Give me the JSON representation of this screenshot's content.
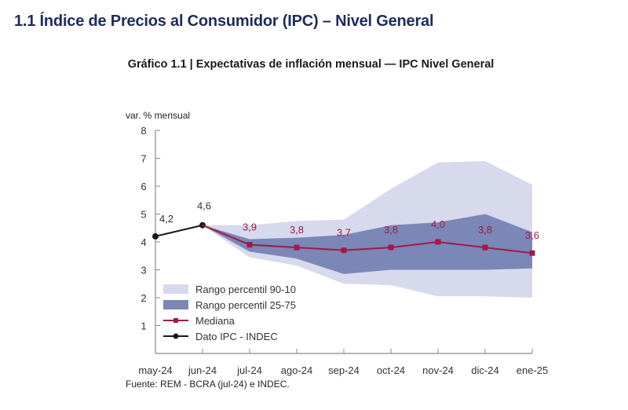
{
  "section": {
    "title": "1.1 Índice de Precios al Consumidor (IPC) – Nivel General"
  },
  "chart_data": {
    "type": "line",
    "title": "Gráfico 1.1 | Expectativas de inflación mensual — IPC Nivel General",
    "ylabel": "var. % mensual",
    "xlabel": "",
    "ylim": [
      0,
      8
    ],
    "yticks": [
      1,
      2,
      3,
      4,
      5,
      6,
      7,
      8
    ],
    "grid": false,
    "legend_position": "bottom-left",
    "categories": [
      "may-24",
      "jun-24",
      "jul-24",
      "ago-24",
      "sep-24",
      "oct-24",
      "nov-24",
      "dic-24",
      "ene-25"
    ],
    "series": [
      {
        "name": "Dato IPC - INDEC",
        "kind": "line",
        "color": "#1a1a1a",
        "categories": [
          "may-24",
          "jun-24"
        ],
        "values": [
          4.2,
          4.6
        ],
        "labels": [
          "4,2",
          "4,6"
        ]
      },
      {
        "name": "Mediana",
        "kind": "line",
        "color": "#a01a4a",
        "categories": [
          "jun-24",
          "jul-24",
          "ago-24",
          "sep-24",
          "oct-24",
          "nov-24",
          "dic-24",
          "ene-25"
        ],
        "values": [
          4.6,
          3.9,
          3.8,
          3.7,
          3.8,
          4.0,
          3.8,
          3.6
        ],
        "labels": [
          "",
          "3,9",
          "3,8",
          "3,7",
          "3,8",
          "4,0",
          "3,8",
          "3,6"
        ]
      },
      {
        "name": "Rango percentil 90-10",
        "kind": "band",
        "color": "#d7d9ec",
        "categories": [
          "jun-24",
          "jul-24",
          "ago-24",
          "sep-24",
          "oct-24",
          "nov-24",
          "dic-24",
          "ene-25"
        ],
        "upper": [
          4.6,
          4.6,
          4.75,
          4.8,
          5.9,
          6.85,
          6.9,
          6.05
        ],
        "lower": [
          4.6,
          3.45,
          3.15,
          2.5,
          2.45,
          2.05,
          2.05,
          2.0
        ]
      },
      {
        "name": "Rango percentil 25-75",
        "kind": "band",
        "color": "#7b87b6",
        "categories": [
          "jun-24",
          "jul-24",
          "ago-24",
          "sep-24",
          "oct-24",
          "nov-24",
          "dic-24",
          "ene-25"
        ],
        "upper": [
          4.6,
          4.1,
          4.15,
          4.25,
          4.6,
          4.7,
          5.0,
          4.35
        ],
        "lower": [
          4.6,
          3.65,
          3.4,
          2.85,
          3.0,
          3.0,
          3.0,
          3.05
        ]
      }
    ],
    "legend": [
      {
        "label": "Rango percentil 90-10",
        "kind": "band",
        "color": "#d7d9ec"
      },
      {
        "label": "Rango percentil 25-75",
        "kind": "band",
        "color": "#7b87b6"
      },
      {
        "label": "Mediana",
        "kind": "line",
        "color": "#a01a4a"
      },
      {
        "label": "Dato IPC - INDEC",
        "kind": "line",
        "color": "#1a1a1a"
      }
    ],
    "source": "Fuente: REM - BCRA (jul-24) e INDEC."
  }
}
